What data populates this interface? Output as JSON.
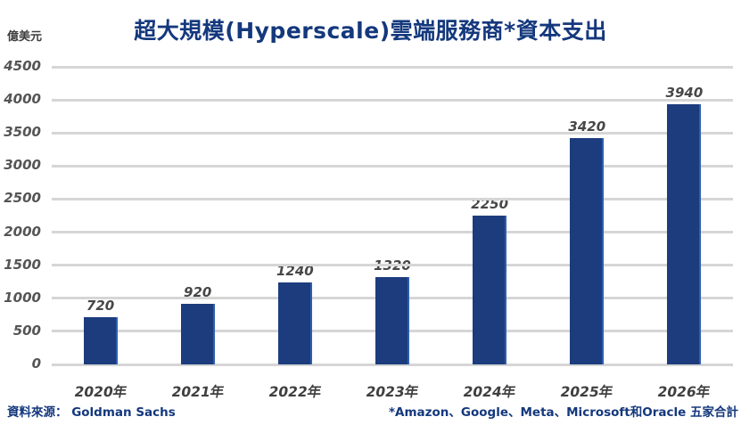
{
  "title": "超大規模(Hyperscale)雲端服務商*資本支出",
  "unit_label": "億美元",
  "footer": {
    "source": "資料來源： Goldman Sachs",
    "note": "*Amazon、Google、Meta、Microsoft和Oracle 五家合計"
  },
  "colors": {
    "bar": "#1c3c7e",
    "bar_edge_highlight": "#2e5fae",
    "title_text": "#14387d",
    "footer_text": "#14387d",
    "gridline": "#d6d6d6",
    "tick_text": "#555555",
    "data_label_text": "#474747",
    "background": "#ffffff"
  },
  "chart_data": {
    "type": "bar",
    "title": "超大規模(Hyperscale)雲端服務商*資本支出",
    "categories": [
      "2020年",
      "2021年",
      "2022年",
      "2023年",
      "2024年",
      "2025年",
      "2026年"
    ],
    "values": [
      720,
      920,
      1240,
      1320,
      2250,
      3420,
      3940
    ],
    "xlabel": "",
    "ylabel": "億美元",
    "ylim": [
      0,
      4500
    ],
    "ytick_step": 500,
    "yticks": [
      0,
      500,
      1000,
      1500,
      2000,
      2500,
      3000,
      3500,
      4000,
      4500
    ],
    "grid": true,
    "gridlines_behind_bars": true,
    "legend": false,
    "data_labels": true,
    "source": "Goldman Sachs",
    "note": "*Amazon、Google、Meta、Microsoft和Oracle 五家合計"
  }
}
